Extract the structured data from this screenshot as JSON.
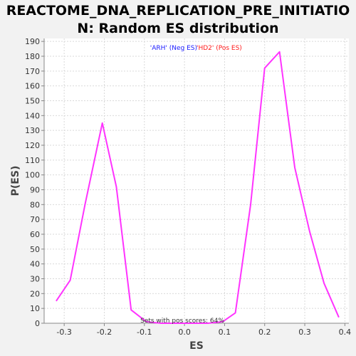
{
  "chart_data": {
    "type": "line",
    "title_line1": "REACTOME_DNA_REPLICATION_PRE_INITIATIO",
    "title_line2": "N: Random ES distribution",
    "xlabel": "ES",
    "ylabel": "P(ES)",
    "xlim": [
      -0.35,
      0.41
    ],
    "ylim": [
      0,
      192
    ],
    "xticks": [
      "-0.3",
      "-0.2",
      "-0.1",
      "0.0",
      "0.1",
      "0.2",
      "0.3",
      "0.4"
    ],
    "xtick_values": [
      -0.3,
      -0.2,
      -0.1,
      0.0,
      0.1,
      0.2,
      0.3,
      0.4
    ],
    "yticks": [
      0,
      10,
      20,
      30,
      40,
      50,
      60,
      70,
      80,
      90,
      100,
      110,
      120,
      130,
      140,
      150,
      160,
      170,
      180,
      190
    ],
    "grid": true,
    "series": [
      {
        "color": "#ff33ff",
        "x": [
          -0.32,
          -0.285,
          -0.248,
          -0.205,
          -0.17,
          -0.133,
          -0.095,
          -0.058,
          0.0,
          0.058,
          0.095,
          0.127,
          0.165,
          0.2,
          0.237,
          0.275,
          0.312,
          0.348,
          0.385
        ],
        "y": [
          15,
          29,
          80,
          135,
          92,
          9,
          1,
          0,
          0,
          0,
          1,
          7,
          80,
          172,
          183,
          105,
          62,
          27,
          4
        ]
      }
    ],
    "annotations": {
      "neg_label": "'ARH' (Neg ES)",
      "neg_color": "#1a1aff",
      "pos_label": "'HD2' (Pos ES)",
      "pos_color": "#ff1a1a",
      "footer": "Sets with pos scores: 64%"
    },
    "colors": {
      "background": "#f2f2f2",
      "plot_background": "#ffffff",
      "grid": "#d9d9d9",
      "line": "#ff33ff"
    }
  }
}
